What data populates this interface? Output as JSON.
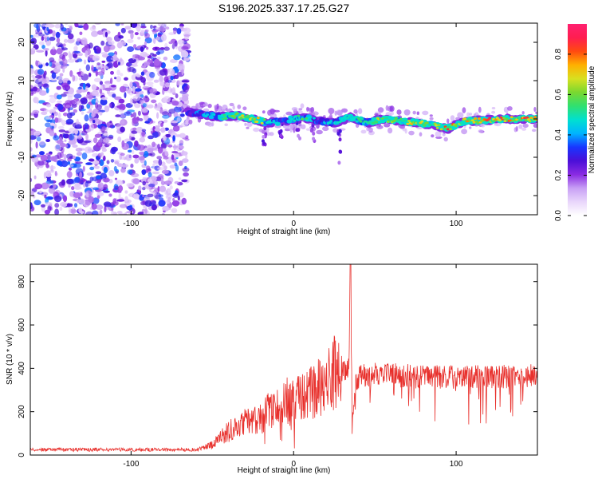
{
  "title": "S196.2025.337.17.25.G27",
  "colors": {
    "snr_line": "#e8302c",
    "axis": "#000000",
    "colorbar_stops": [
      "#ffffff",
      "#e9d6fb",
      "#c8a0f5",
      "#8a2be2",
      "#4b0fd8",
      "#1836ff",
      "#00b4ff",
      "#00e0d0",
      "#30e070",
      "#7ad830",
      "#d8e020",
      "#ffb000",
      "#ff4a10",
      "#ff1e50",
      "#ff2070"
    ]
  },
  "chart_data": [
    {
      "type": "heatmap",
      "title": "S196.2025.337.17.25.G27",
      "xlabel": "Height of straight line (km)",
      "ylabel": "Frequency (Hz)",
      "xlim": [
        -162,
        150
      ],
      "ylim": [
        -25,
        25
      ],
      "x_ticks": [
        -100,
        0,
        100
      ],
      "x_tick_labels": [
        "-100",
        "0",
        "100"
      ],
      "y_ticks": [
        -20,
        -10,
        0,
        10,
        20
      ],
      "y_tick_labels": [
        "-20",
        "-10",
        "0",
        "10",
        "20"
      ],
      "noise_region_x": [
        -162,
        -65
      ],
      "ridge": {
        "x": [
          -65,
          -55,
          -45,
          -35,
          -25,
          -15,
          -5,
          5,
          15,
          25,
          35,
          45,
          55,
          65,
          75,
          85,
          95,
          105,
          115,
          125,
          135,
          150
        ],
        "frequency": [
          2,
          1,
          0.5,
          1,
          0,
          -1,
          -0.5,
          0.5,
          -0.5,
          -1,
          0.5,
          -1,
          0,
          -0.5,
          -1,
          -1.5,
          -2.5,
          -0.5,
          -0.5,
          0,
          0,
          0
        ],
        "amplitude": [
          0.35,
          0.45,
          0.5,
          0.7,
          0.85,
          0.55,
          0.4,
          0.6,
          0.45,
          0.5,
          0.6,
          0.55,
          0.75,
          0.65,
          0.8,
          0.6,
          0.9,
          0.75,
          0.95,
          0.85,
          0.9,
          0.85
        ]
      },
      "colorbar": {
        "label": "Normalized spectral amplitude",
        "range": [
          0,
          0.95
        ],
        "ticks": [
          0.0,
          0.2,
          0.4,
          0.6,
          0.8
        ],
        "tick_labels": [
          "0.0",
          "0.2",
          "0.4",
          "0.6",
          "0.8"
        ]
      }
    },
    {
      "type": "line",
      "title": "",
      "xlabel": "Height of straight line (km)",
      "ylabel": "SNR (10 * v/v)",
      "xlim": [
        -162,
        150
      ],
      "ylim": [
        0,
        880
      ],
      "x_ticks": [
        -100,
        0,
        100
      ],
      "x_tick_labels": [
        "-100",
        "0",
        "100"
      ],
      "y_ticks": [
        0,
        200,
        400,
        600,
        800
      ],
      "y_tick_labels": [
        "0",
        "200",
        "400",
        "600",
        "800"
      ],
      "series": [
        {
          "name": "SNR",
          "x": [
            -162,
            -140,
            -120,
            -100,
            -80,
            -60,
            -50,
            -45,
            -40,
            -30,
            -20,
            -10,
            -5,
            0,
            10,
            20,
            25,
            30,
            34,
            35,
            36,
            38,
            40,
            50,
            60,
            80,
            100,
            120,
            140,
            150
          ],
          "values": [
            25,
            25,
            25,
            25,
            25,
            25,
            45,
            80,
            110,
            150,
            180,
            230,
            250,
            240,
            280,
            330,
            380,
            390,
            400,
            880,
            150,
            330,
            360,
            380,
            370,
            360,
            360,
            360,
            365,
            370
          ]
        }
      ]
    }
  ]
}
